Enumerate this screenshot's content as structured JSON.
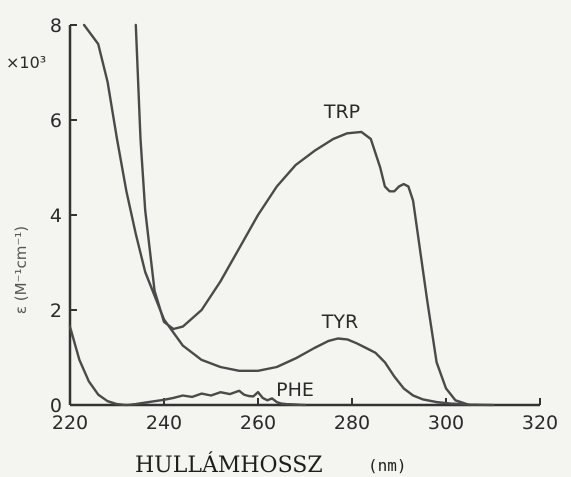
{
  "chart_data": {
    "type": "line",
    "xlabel": "HULLÁMHOSSZ",
    "xunit": "(nm)",
    "ylabel": "ε (M⁻¹cm⁻¹)",
    "y_multiplier": "×10³",
    "xlim": [
      220,
      320
    ],
    "ylim": [
      0,
      8
    ],
    "x_ticks": [
      "220",
      "240",
      "260",
      "280",
      "300",
      "320"
    ],
    "y_ticks": [
      "0",
      "2",
      "4",
      "6",
      "8"
    ],
    "line_color": "#4a4a4a",
    "series": [
      {
        "name": "TRP",
        "x": [
          234,
          235,
          236,
          238,
          240,
          242,
          244,
          248,
          252,
          256,
          260,
          264,
          268,
          272,
          276,
          279,
          282,
          284,
          286,
          287,
          288,
          289,
          290,
          291,
          292,
          293,
          294,
          296,
          298,
          300,
          302,
          305
        ],
        "y": [
          8,
          5.6,
          4.1,
          2.4,
          1.75,
          1.6,
          1.65,
          2.0,
          2.6,
          3.3,
          4.0,
          4.6,
          5.05,
          5.35,
          5.6,
          5.72,
          5.75,
          5.6,
          5.0,
          4.6,
          4.5,
          4.5,
          4.6,
          4.65,
          4.6,
          4.3,
          3.6,
          2.2,
          0.9,
          0.35,
          0.1,
          0
        ]
      },
      {
        "name": "TYR",
        "x": [
          223,
          226,
          228,
          230,
          232,
          234,
          236,
          240,
          244,
          248,
          252,
          256,
          260,
          264,
          268,
          272,
          275,
          277,
          279,
          281,
          283,
          285,
          287,
          289,
          291,
          293,
          295,
          298,
          301,
          305,
          310
        ],
        "y": [
          8,
          7.6,
          6.8,
          5.6,
          4.5,
          3.6,
          2.8,
          1.8,
          1.25,
          0.95,
          0.8,
          0.72,
          0.72,
          0.8,
          0.98,
          1.2,
          1.35,
          1.4,
          1.38,
          1.3,
          1.2,
          1.1,
          0.9,
          0.6,
          0.35,
          0.2,
          0.12,
          0.06,
          0.03,
          0.01,
          0
        ]
      },
      {
        "name": "PHE",
        "x": [
          220,
          221,
          222,
          224,
          226,
          228,
          230,
          232,
          234,
          236,
          238,
          240,
          242,
          244,
          246,
          248,
          250,
          252,
          254,
          256,
          257,
          258,
          259,
          260,
          261,
          262,
          263,
          264,
          265,
          266,
          268,
          270
        ],
        "y": [
          1.65,
          1.3,
          0.95,
          0.5,
          0.22,
          0.08,
          0.02,
          0,
          0.02,
          0.05,
          0.08,
          0.11,
          0.15,
          0.2,
          0.17,
          0.24,
          0.2,
          0.27,
          0.23,
          0.3,
          0.22,
          0.19,
          0.18,
          0.27,
          0.15,
          0.1,
          0.14,
          0.06,
          0.03,
          0.02,
          0.01,
          0
        ]
      }
    ]
  }
}
